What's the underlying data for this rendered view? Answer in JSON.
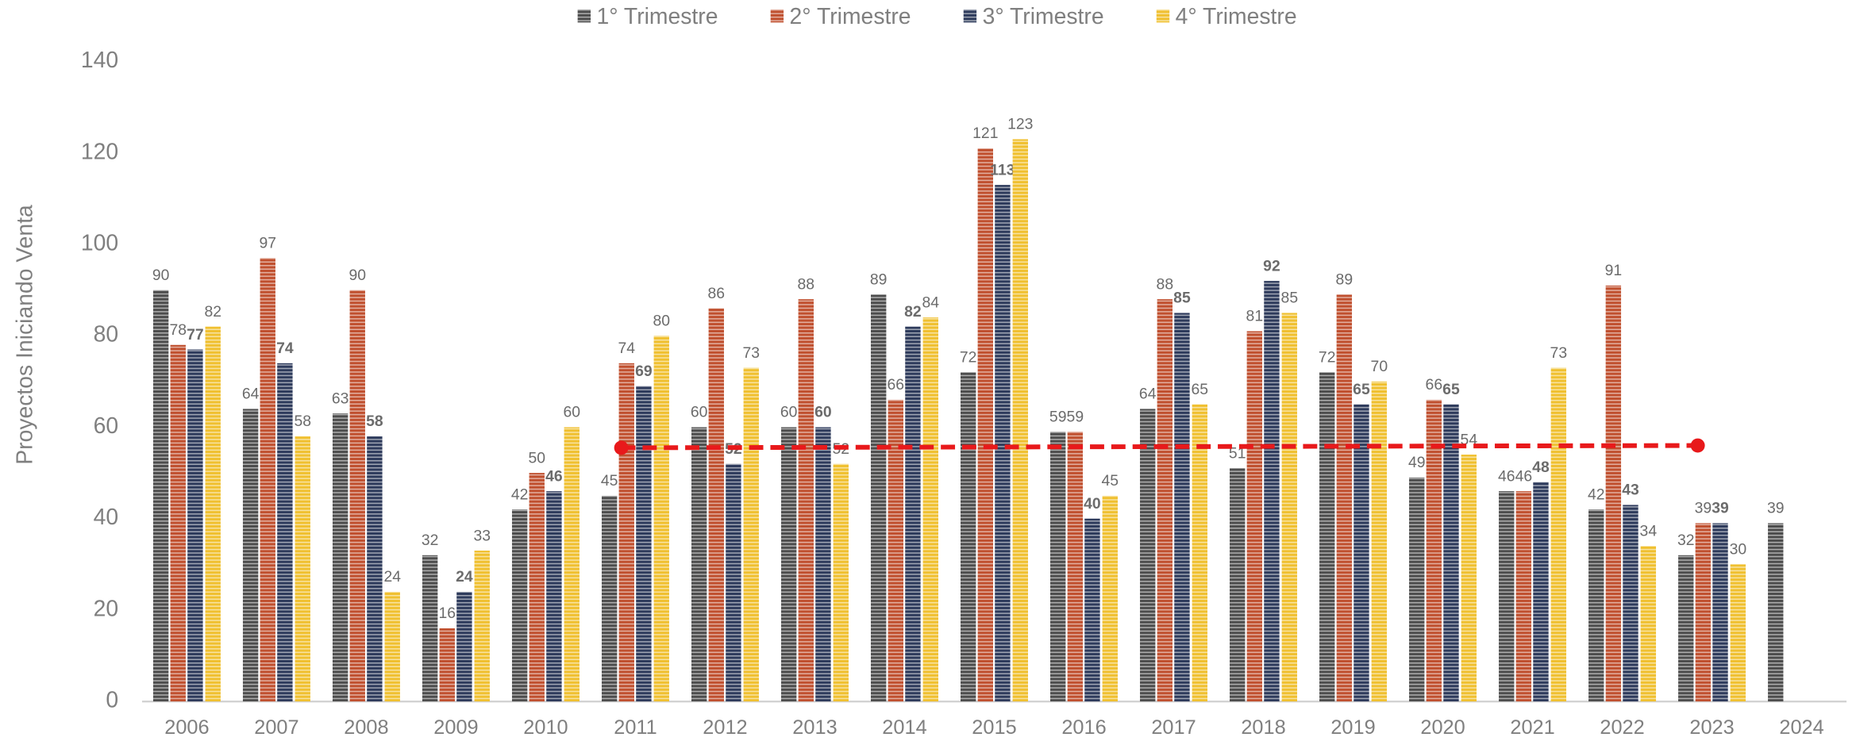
{
  "chart_data": {
    "type": "bar",
    "y_label": "Proyectos Iniciando Venta",
    "categories": [
      "2006",
      "2007",
      "2008",
      "2009",
      "2010",
      "2011",
      "2012",
      "2013",
      "2014",
      "2015",
      "2016",
      "2017",
      "2018",
      "2019",
      "2020",
      "2021",
      "2022",
      "2023",
      "2024"
    ],
    "series": [
      {
        "name": "1° Trimestre",
        "color": "#4d4d4d",
        "values": [
          90,
          64,
          63,
          32,
          42,
          45,
          60,
          60,
          89,
          72,
          59,
          64,
          51,
          72,
          49,
          46,
          42,
          32,
          39
        ]
      },
      {
        "name": "2° Trimestre",
        "color": "#c0502f",
        "values": [
          78,
          97,
          90,
          16,
          50,
          74,
          86,
          88,
          66,
          121,
          59,
          88,
          81,
          89,
          66,
          46,
          91,
          39,
          null
        ]
      },
      {
        "name": "3° Trimestre",
        "color": "#2e3b5c",
        "values": [
          77,
          74,
          58,
          24,
          46,
          69,
          52,
          60,
          82,
          113,
          40,
          85,
          92,
          65,
          65,
          48,
          43,
          39,
          null
        ]
      },
      {
        "name": "4° Trimestre",
        "color": "#f0c030",
        "values": [
          82,
          58,
          24,
          33,
          60,
          80,
          73,
          52,
          84,
          123,
          45,
          65,
          85,
          70,
          54,
          73,
          34,
          30,
          null
        ]
      }
    ],
    "trend_line": {
      "x": [
        "2011",
        "2023"
      ],
      "values": [
        55.5,
        56
      ],
      "color": "#e8191b"
    },
    "ylim": [
      0,
      140
    ],
    "yticks": [
      0,
      20,
      40,
      60,
      80,
      100,
      120,
      140
    ],
    "grid": false
  }
}
